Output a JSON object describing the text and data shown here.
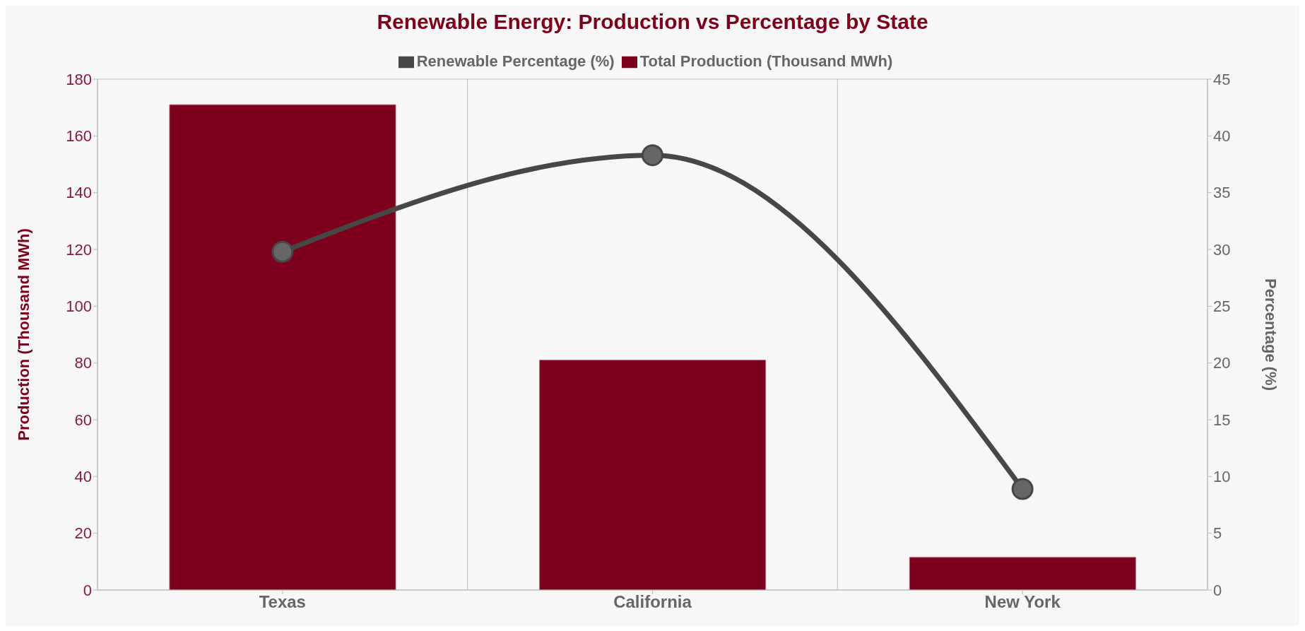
{
  "chart_data": {
    "type": "bar",
    "title": "Renewable Energy: Production vs Percentage by State",
    "categories": [
      "Texas",
      "California",
      "New York"
    ],
    "series": [
      {
        "name": "Renewable Percentage (%)",
        "type": "line",
        "axis": "y2",
        "color": "#474747",
        "values": [
          29.8,
          38.3,
          8.9
        ]
      },
      {
        "name": "Total Production (Thousand MWh)",
        "color": "#7d001c",
        "values": [
          171,
          81,
          11.5
        ]
      }
    ],
    "ylabel": "Production (Thousand MWh)",
    "y2label": "Percentage (%)",
    "ylim": [
      0,
      180
    ],
    "yticks": [
      0,
      20,
      40,
      60,
      80,
      100,
      120,
      140,
      160,
      180
    ],
    "y2lim": [
      0,
      45
    ],
    "y2ticks": [
      0,
      5,
      10,
      15,
      20,
      25,
      30,
      35,
      40,
      45
    ],
    "grid": true,
    "legend": "top",
    "marker": "circle",
    "line_style": "solid"
  }
}
